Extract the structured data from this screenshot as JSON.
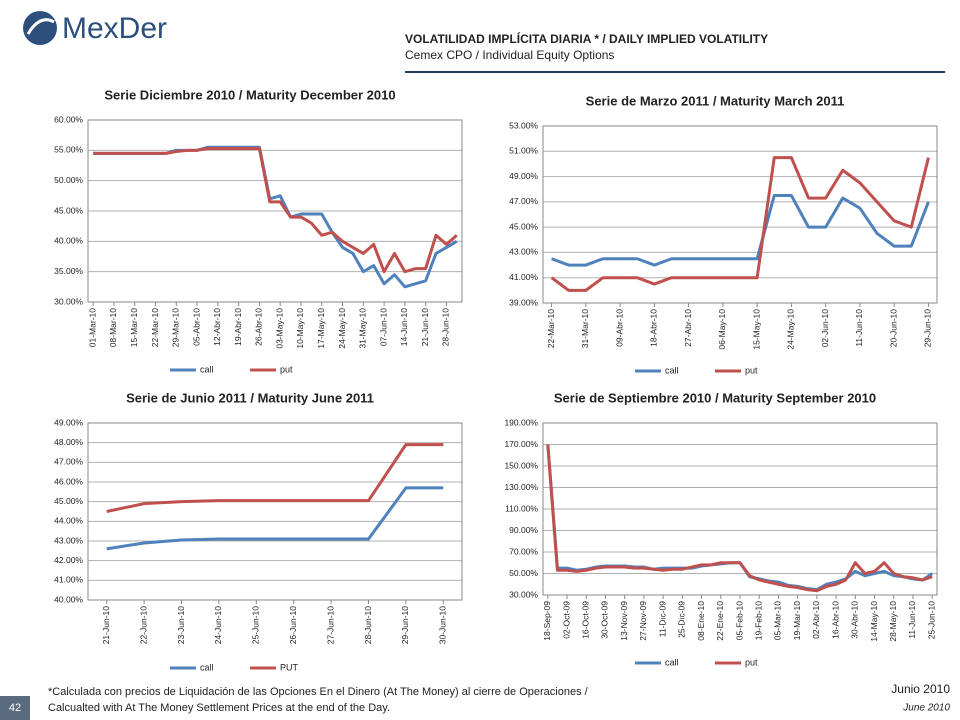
{
  "header": {
    "logo": "MexDer",
    "title": "VOLATILIDAD IMPLÍCITA DIARIA * / DAILY IMPLIED VOLATILITY",
    "subtitle": "Cemex CPO / Individual Equity Options"
  },
  "chart_data": [
    {
      "type": "line",
      "title": "Serie Diciembre 2010 / Maturity December 2010",
      "categories": [
        "01-Mar-10",
        null,
        "08-Mar-10",
        null,
        "15-Mar-10",
        null,
        "22-Mar-10",
        null,
        "29-Mar-10",
        null,
        "05-Abr-10",
        null,
        "12-Abr-10",
        null,
        "19-Abr-10",
        null,
        "26-Abr-10",
        null,
        "03-May-10",
        null,
        "10-May-10",
        null,
        "17-May-10",
        null,
        "24-May-10",
        null,
        "31-May-10",
        null,
        "07-Jun-10",
        null,
        "14-Jun-10",
        null,
        "21-Jun-10",
        null,
        "28-Jun-10",
        null
      ],
      "series": [
        {
          "name": "call",
          "color": "#4f81bd",
          "values": [
            54.5,
            54.5,
            54.5,
            54.5,
            54.5,
            54.5,
            54.5,
            54.5,
            55,
            55,
            55,
            55.5,
            55.5,
            55.5,
            55.5,
            55.5,
            55.5,
            47,
            47.5,
            44,
            44.5,
            44.5,
            44.5,
            41.5,
            39,
            38,
            35,
            36,
            33,
            34.5,
            32.5,
            33,
            33.5,
            38,
            39,
            40
          ]
        },
        {
          "name": "put",
          "color": "#c0504d",
          "values": [
            54.5,
            54.5,
            54.5,
            54.5,
            54.5,
            54.5,
            54.5,
            54.5,
            54.8,
            55,
            55,
            55.3,
            55.3,
            55.3,
            55.3,
            55.3,
            55.3,
            46.5,
            46.5,
            44,
            44,
            43,
            41,
            41.5,
            40,
            39,
            38,
            39.5,
            35,
            38,
            35,
            35.5,
            35.5,
            41,
            39.5,
            41
          ]
        }
      ],
      "ylim": [
        30,
        60
      ],
      "yticks": [
        {
          "value": 30,
          "label": "30.00%"
        },
        {
          "value": 35,
          "label": "35.00%"
        },
        {
          "value": 40,
          "label": "40.00%"
        },
        {
          "value": 45,
          "label": "45.00%"
        },
        {
          "value": 50,
          "label": "50.00%"
        },
        {
          "value": 55,
          "label": "55.00%"
        },
        {
          "value": 60,
          "label": "60.00%"
        }
      ],
      "grid": true
    },
    {
      "type": "line",
      "title": "Serie de Marzo 2011 / Maturity March 2011",
      "categories": [
        "22-Mar-10",
        null,
        "31-Mar-10",
        null,
        "09-Abr-10",
        null,
        "18-Abr-10",
        null,
        "27-Abr-10",
        null,
        "06-May-10",
        null,
        "15-May-10",
        null,
        "24-May-10",
        null,
        "02-Jun-10",
        null,
        "11-Jun-10",
        null,
        "20-Jun-10",
        null,
        "29-Jun-10"
      ],
      "series": [
        {
          "name": "call",
          "color": "#4f81bd",
          "values": [
            42.5,
            42,
            42,
            42.5,
            42.5,
            42.5,
            42,
            42.5,
            42.5,
            42.5,
            42.5,
            42.5,
            42.5,
            47.5,
            47.5,
            45,
            45,
            47.3,
            46.5,
            44.5,
            43.5,
            43.5,
            47
          ]
        },
        {
          "name": "put",
          "color": "#c0504d",
          "values": [
            41,
            40,
            40,
            41,
            41,
            41,
            40.5,
            41,
            41,
            41,
            41,
            41,
            41,
            50.5,
            50.5,
            47.3,
            47.3,
            49.5,
            48.5,
            47,
            45.5,
            45,
            50.5
          ]
        }
      ],
      "ylim": [
        39,
        53
      ],
      "yticks": [
        {
          "value": 39,
          "label": "39.00%"
        },
        {
          "value": 41,
          "label": "41.00%"
        },
        {
          "value": 43,
          "label": "43.00%"
        },
        {
          "value": 45,
          "label": "45.00%"
        },
        {
          "value": 47,
          "label": "47.00%"
        },
        {
          "value": 49,
          "label": "49.00%"
        },
        {
          "value": 51,
          "label": "51.00%"
        },
        {
          "value": 53,
          "label": "53.00%"
        }
      ],
      "grid": true
    },
    {
      "type": "line",
      "title": "Serie de Junio 2011 / Maturity June 2011",
      "categories": [
        "21-Jun-10",
        "22-Jun-10",
        "23-Jun-10",
        "24-Jun-10",
        "25-Jun-10",
        "26-Jun-10",
        "27-Jun-10",
        "28-Jun-10",
        "29-Jun-10",
        "30-Jun-10"
      ],
      "series": [
        {
          "name": "call",
          "color": "#4f81bd",
          "values": [
            42.6,
            42.9,
            43.05,
            43.1,
            43.1,
            43.1,
            43.1,
            43.1,
            45.7,
            45.7
          ]
        },
        {
          "name": "PUT",
          "color": "#c0504d",
          "values": [
            44.5,
            44.9,
            45,
            45.05,
            45.05,
            45.05,
            45.05,
            45.05,
            47.9,
            47.9
          ]
        }
      ],
      "ylim": [
        40,
        49
      ],
      "yticks": [
        {
          "value": 40,
          "label": "40.00%"
        },
        {
          "value": 41,
          "label": "41.00%"
        },
        {
          "value": 42,
          "label": "42.00%"
        },
        {
          "value": 43,
          "label": "43.00%"
        },
        {
          "value": 44,
          "label": "44.00%"
        },
        {
          "value": 45,
          "label": "45.00%"
        },
        {
          "value": 46,
          "label": "46.00%"
        },
        {
          "value": 47,
          "label": "47.00%"
        },
        {
          "value": 48,
          "label": "48.00%"
        },
        {
          "value": 49,
          "label": "49.00%"
        }
      ],
      "grid": true
    },
    {
      "type": "line",
      "title": "Serie de Septiembre 2010 / Maturity September 2010",
      "categories": [
        "18-Sep-09",
        null,
        "02-Oct-09",
        null,
        "16-Oct-09",
        null,
        "30-Oct-09",
        null,
        "13-Nov-09",
        null,
        "27-Nov-09",
        null,
        "11-Dic-09",
        null,
        "25-Dic-09",
        null,
        "08-Ene-10",
        null,
        "22-Ene-10",
        null,
        "05-Feb-10",
        null,
        "19-Feb-10",
        null,
        "05-Mar-10",
        null,
        "19-Mar-10",
        null,
        "02-Abr-10",
        null,
        "16-Abr-10",
        null,
        "30-Abr-10",
        null,
        "14-May-10",
        null,
        "28-May-10",
        null,
        "11-Jun-10",
        null,
        "25-Jun-10"
      ],
      "series": [
        {
          "name": "call",
          "color": "#4f81bd",
          "values": [
            170,
            55,
            55,
            53,
            54,
            56,
            57,
            57,
            57,
            56,
            56,
            54,
            55,
            55,
            55,
            55,
            57,
            58,
            59,
            60,
            60,
            47,
            45,
            43,
            42,
            39,
            38,
            36,
            35,
            40,
            42,
            45,
            52,
            48,
            50,
            52,
            48,
            47,
            45,
            44,
            50
          ]
        },
        {
          "name": "put",
          "color": "#c0504d",
          "values": [
            170,
            53,
            53,
            52,
            53,
            55,
            56,
            56,
            56,
            55,
            55,
            54,
            53,
            54,
            54,
            56,
            58,
            58,
            60,
            60,
            60,
            48,
            44,
            42,
            40,
            38,
            37,
            35,
            34,
            38,
            40,
            44,
            60,
            50,
            52,
            60,
            50,
            47,
            46,
            44,
            47
          ]
        }
      ],
      "ylim": [
        30,
        190
      ],
      "yticks": [
        {
          "value": 30,
          "label": "30.00%"
        },
        {
          "value": 50,
          "label": "50.00%"
        },
        {
          "value": 70,
          "label": "70.00%"
        },
        {
          "value": 90,
          "label": "90.00%"
        },
        {
          "value": 110,
          "label": "110.00%"
        },
        {
          "value": 130,
          "label": "130.00%"
        },
        {
          "value": 150,
          "label": "150.00%"
        },
        {
          "value": 170,
          "label": "170.00%"
        },
        {
          "value": 190,
          "label": "190.00%"
        }
      ],
      "grid": true
    }
  ],
  "footer": {
    "page": "42",
    "note": [
      "*Calculada con precios de Liquidación de las Opciones En el Dinero (At The Money) al cierre de Operaciones /",
      "Calcualted with At The Money Settlement Prices at the end of the Day."
    ],
    "date_es": "Junio 2010",
    "date_en": "June 2010"
  }
}
